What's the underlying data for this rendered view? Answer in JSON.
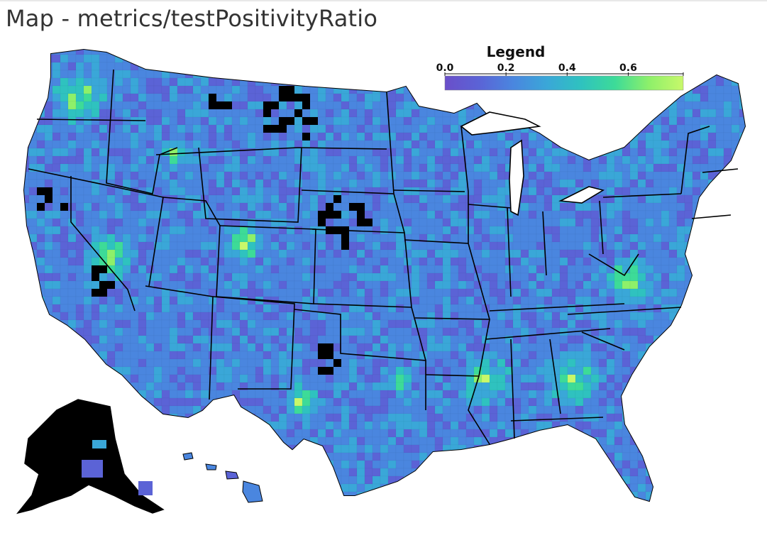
{
  "page": {
    "title": "Map - metrics/testPositivityRatio"
  },
  "legend": {
    "title": "Legend",
    "ticks": [
      "0.0",
      "0.2",
      "0.4",
      "0.6"
    ],
    "domain": [
      0.0,
      0.78
    ],
    "colors": [
      "#6a4fc9",
      "#5b63d6",
      "#4a86df",
      "#3aa7d8",
      "#2fc2bf",
      "#3ddb98",
      "#8ef06a",
      "#c8f86a"
    ],
    "no_data_color": "#000000"
  },
  "map": {
    "region": "United States counties",
    "metric": "metrics/testPositivityRatio",
    "border_color": "#000000",
    "inset_regions": [
      "Alaska",
      "Hawaii"
    ]
  }
}
